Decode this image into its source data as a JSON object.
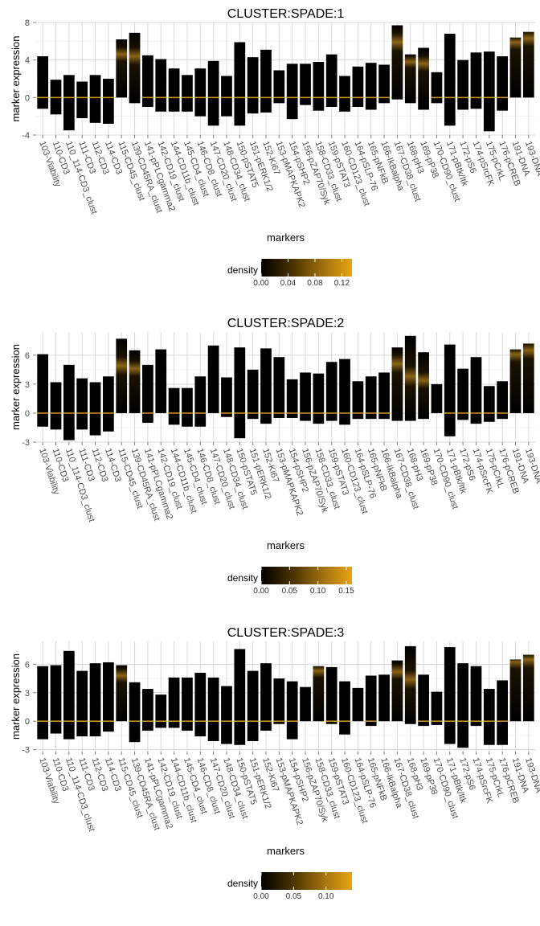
{
  "chart_data": [
    {
      "type": "heatmap",
      "title": "CLUSTER:SPADE:1",
      "xlabel": "markers",
      "ylabel": "marker expression",
      "ylim": [
        -4,
        8
      ],
      "yticks": [
        -4,
        0,
        4,
        8
      ],
      "legend": {
        "title": "density",
        "ticks": [
          "0.00",
          "0.04",
          "0.08",
          "0.12"
        ],
        "max": 0.135,
        "tick_values": [
          0,
          0.04,
          0.08,
          0.12
        ]
      },
      "categories": [
        "103-Viability",
        "110-CD3",
        "110_114-CD3_clust",
        "111-CD3",
        "112-CD3",
        "114-CD3",
        "115-CD45_clust",
        "139-CD45RA_clust",
        "141-pPLCgamma2",
        "142-CD19_clust",
        "144-CD11b_clust",
        "145-CD4_clust",
        "146-CD8_clust",
        "147-CD20_clust",
        "148-CD34_clust",
        "150-pSTAT5",
        "151-pERK1/2",
        "152-Ki67",
        "153-pMAPKAPK2",
        "154-pSHP2",
        "156-pZAP70/Syk",
        "158-CD33_clust",
        "159-pSTAT3",
        "160-CD123_clust",
        "164-pSLP-76",
        "165-pNFkB",
        "166-IkBalpha",
        "167-CD38_clust",
        "168-pH3",
        "169-pP38",
        "170-CD90_clust",
        "171-pBtk/Itk",
        "172-pS6",
        "174-pSrcFK",
        "175-pCrkL",
        "176-pCREB",
        "191-DNA",
        "193-DNA"
      ],
      "ranges": [
        [
          -1.2,
          4.4
        ],
        [
          -1.8,
          1.9
        ],
        [
          -3.5,
          2.4
        ],
        [
          -2.2,
          1.7
        ],
        [
          -2.7,
          2.4
        ],
        [
          -2.8,
          2.0
        ],
        [
          0,
          6.2
        ],
        [
          -0.6,
          6.9
        ],
        [
          -1,
          4.5
        ],
        [
          -1.5,
          4.1
        ],
        [
          -1.5,
          3.1
        ],
        [
          -1.5,
          2.4
        ],
        [
          -2.0,
          3.1
        ],
        [
          -3.0,
          3.9
        ],
        [
          -2.0,
          2.3
        ],
        [
          -3.0,
          5.9
        ],
        [
          -1.7,
          4.3
        ],
        [
          -1.6,
          5.1
        ],
        [
          -0.6,
          2.9
        ],
        [
          -2.3,
          3.6
        ],
        [
          -0.8,
          3.6
        ],
        [
          -1.4,
          3.8
        ],
        [
          -1.0,
          4.6
        ],
        [
          -1.5,
          2.3
        ],
        [
          -1.0,
          3.3
        ],
        [
          -1.3,
          3.7
        ],
        [
          -0.6,
          3.5
        ],
        [
          -0.2,
          7.7
        ],
        [
          -0.6,
          4.6
        ],
        [
          -1.3,
          5.3
        ],
        [
          -0.6,
          2.7
        ],
        [
          -3.0,
          6.8
        ],
        [
          -1.3,
          4.0
        ],
        [
          -1.2,
          4.8
        ],
        [
          -3.6,
          4.9
        ],
        [
          -1.4,
          4.4
        ],
        [
          0,
          6.4
        ],
        [
          0,
          7.0
        ]
      ],
      "peaks": [
        0,
        0,
        0,
        0,
        0,
        0,
        4.6,
        4.4,
        0,
        0,
        0,
        0,
        0,
        0,
        0,
        0,
        0,
        0,
        0,
        0,
        0,
        0,
        0,
        0,
        0,
        0,
        0,
        5.9,
        3.8,
        3.6,
        0,
        0,
        0,
        0,
        0,
        0,
        5.9,
        6.3
      ]
    },
    {
      "type": "heatmap",
      "title": "CLUSTER:SPADE:2",
      "xlabel": "markers",
      "ylabel": "marker expression",
      "ylim": [
        -3,
        8.4
      ],
      "yticks": [
        -3,
        0,
        3,
        6
      ],
      "legend": {
        "title": "density",
        "ticks": [
          "0.00",
          "0.05",
          "0.10",
          "0.15"
        ],
        "max": 0.16,
        "tick_values": [
          0,
          0.05,
          0.1,
          0.15
        ]
      },
      "categories": [
        "103-Viability",
        "110-CD3",
        "110_114-CD3_clust",
        "111-CD3",
        "112-CD3",
        "114-CD3",
        "115-CD45_clust",
        "139-CD45RA_clust",
        "141-pPLCgamma2",
        "142-CD19_clust",
        "144-CD11b_clust",
        "145-CD4_clust",
        "146-CD8_clust",
        "147-CD20_clust",
        "148-CD34_clust",
        "150-pSTAT5",
        "151-pERK1/2",
        "152-Ki67",
        "153-pMAPKAPK2",
        "154-pSHP2",
        "156-pZAP70/Syk",
        "158-CD33_clust",
        "159-pSTAT3",
        "160-CD123_clust",
        "164-pSLP-76",
        "165-pNFkB",
        "166-IkBalpha",
        "167-CD38_clust",
        "168-pH3",
        "169-pP38",
        "170-CD90_clust",
        "171-pBtk/Itk",
        "172-pS6",
        "174-pSrcFK",
        "175-pCrkL",
        "176-pCREB",
        "191-DNA",
        "193-DNA"
      ],
      "ranges": [
        [
          -1.4,
          6.1
        ],
        [
          -1.7,
          3.2
        ],
        [
          -2.8,
          5.0
        ],
        [
          -1.7,
          3.6
        ],
        [
          -2.3,
          3.2
        ],
        [
          -1.9,
          3.8
        ],
        [
          0,
          7.7
        ],
        [
          0,
          6.5
        ],
        [
          -1,
          5.0
        ],
        [
          0,
          6.6
        ],
        [
          -1.2,
          2.6
        ],
        [
          -1.4,
          2.6
        ],
        [
          -1.4,
          3.8
        ],
        [
          0,
          7.0
        ],
        [
          -0.4,
          3.7
        ],
        [
          -2.6,
          6.8
        ],
        [
          -0.6,
          4.5
        ],
        [
          -1.1,
          6.7
        ],
        [
          -0.5,
          5.8
        ],
        [
          -0.5,
          3.5
        ],
        [
          -0.8,
          4.2
        ],
        [
          -1.1,
          4.1
        ],
        [
          -0.8,
          5.3
        ],
        [
          -1.2,
          5.6
        ],
        [
          -0.6,
          3.3
        ],
        [
          -0.6,
          3.8
        ],
        [
          -0.6,
          4.2
        ],
        [
          -0.8,
          6.8
        ],
        [
          -0.8,
          8.0
        ],
        [
          -0.6,
          6.3
        ],
        [
          0,
          3.0
        ],
        [
          -2.4,
          7.1
        ],
        [
          -0.7,
          4.6
        ],
        [
          -1.1,
          5.8
        ],
        [
          -0.9,
          2.8
        ],
        [
          -0.6,
          3.3
        ],
        [
          0,
          6.6
        ],
        [
          0,
          7.2
        ]
      ],
      "peaks": [
        0,
        0,
        0,
        0,
        0,
        0,
        4.9,
        4.6,
        0,
        0,
        0,
        0,
        0,
        0,
        0,
        0,
        0,
        0,
        0,
        0,
        0,
        0,
        0,
        0,
        0,
        0,
        0,
        5.1,
        3.8,
        3.4,
        0,
        0,
        0,
        0,
        0,
        0,
        6.1,
        6.5
      ]
    },
    {
      "type": "heatmap",
      "title": "CLUSTER:SPADE:3",
      "xlabel": "markers",
      "ylabel": "marker expression",
      "ylim": [
        -3.2,
        8.4
      ],
      "yticks": [
        -3,
        0,
        3,
        6
      ],
      "legend": {
        "title": "density",
        "ticks": [
          "0.00",
          "0.05",
          "0.10"
        ],
        "max": 0.14,
        "tick_values": [
          0,
          0.05,
          0.1
        ]
      },
      "categories": [
        "103-Viability",
        "110-CD3",
        "110_114-CD3_clust",
        "111-CD3",
        "112-CD3",
        "114-CD3",
        "115-CD45_clust",
        "139-CD45RA_clust",
        "141-pPLCgamma2",
        "142-CD19_clust",
        "144-CD11b_clust",
        "145-CD4_clust",
        "146-CD8_clust",
        "147-CD20_clust",
        "148-CD34_clust",
        "150-pSTAT5",
        "151-pERK1/2",
        "152-Ki67",
        "153-pMAPKAPK2",
        "154-pSHP2",
        "156-pZAP70/Syk",
        "158-CD33_clust",
        "159-pSTAT3",
        "160-CD123_clust",
        "164-pSLP-76",
        "165-pNFkB",
        "166-IkBalpha",
        "167-CD38_clust",
        "168-pH3",
        "169-pP38",
        "170-CD90_clust",
        "171-pBtk/Itk",
        "172-pS6",
        "174-pSrcFK",
        "175-pCrkL",
        "176-pCREB",
        "191-DNA",
        "193-DNA"
      ],
      "ranges": [
        [
          -1.9,
          5.8
        ],
        [
          -1.3,
          5.9
        ],
        [
          -1.9,
          7.4
        ],
        [
          -1.6,
          5.3
        ],
        [
          -1.6,
          6.1
        ],
        [
          -1.1,
          6.2
        ],
        [
          0,
          5.9
        ],
        [
          -2.2,
          4.1
        ],
        [
          -1.0,
          3.4
        ],
        [
          -0.7,
          2.8
        ],
        [
          -0.7,
          4.6
        ],
        [
          -1.0,
          4.6
        ],
        [
          -1.6,
          5.1
        ],
        [
          -2.1,
          4.6
        ],
        [
          -2.4,
          3.7
        ],
        [
          -2.5,
          7.6
        ],
        [
          -2.1,
          5.3
        ],
        [
          -1.0,
          6.1
        ],
        [
          -0.3,
          4.5
        ],
        [
          -1.9,
          4.2
        ],
        [
          0,
          3.6
        ],
        [
          0,
          5.8
        ],
        [
          -0.3,
          5.7
        ],
        [
          -1.4,
          4.2
        ],
        [
          0,
          3.5
        ],
        [
          -0.5,
          4.8
        ],
        [
          0,
          4.9
        ],
        [
          0,
          6.4
        ],
        [
          -0.3,
          7.9
        ],
        [
          -0.5,
          4.9
        ],
        [
          -0.4,
          3.1
        ],
        [
          -2.4,
          7.8
        ],
        [
          -2.8,
          6.1
        ],
        [
          -0.5,
          5.8
        ],
        [
          -2.5,
          3.4
        ],
        [
          -2.5,
          4.3
        ],
        [
          0,
          6.5
        ],
        [
          0,
          7.0
        ]
      ],
      "peaks": [
        0,
        0,
        0,
        0,
        0,
        0,
        4.8,
        0,
        0,
        0,
        0,
        0,
        0,
        0,
        0,
        0,
        0,
        0,
        0,
        0,
        0,
        5.3,
        0,
        0,
        0,
        0,
        0,
        5.2,
        4.4,
        0,
        0,
        0,
        0,
        0,
        0,
        0,
        6.3,
        6.5
      ]
    }
  ]
}
